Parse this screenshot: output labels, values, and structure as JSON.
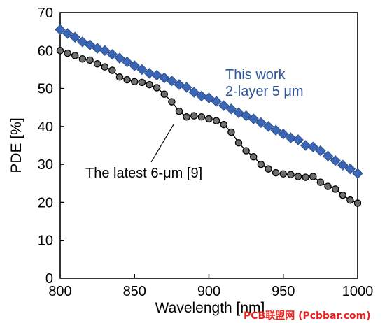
{
  "chart_data": {
    "type": "line",
    "xlabel": "Wavelength [nm]",
    "ylabel": "PDE [%]",
    "xlim": [
      800,
      1000
    ],
    "ylim": [
      0,
      70
    ],
    "x_ticks": [
      "800",
      "850",
      "900",
      "950",
      "1000"
    ],
    "y_ticks": [
      "0",
      "10",
      "20",
      "30",
      "40",
      "50",
      "60",
      "70"
    ],
    "grid": false,
    "series": [
      {
        "name": "This work 2-layer 5 μm",
        "color": "#3a66b5",
        "marker": "diamond",
        "x": [
          800,
          805,
          810,
          815,
          820,
          825,
          830,
          835,
          840,
          845,
          850,
          855,
          860,
          865,
          870,
          875,
          880,
          885,
          890,
          895,
          900,
          905,
          910,
          915,
          920,
          925,
          930,
          935,
          940,
          945,
          950,
          955,
          960,
          965,
          970,
          975,
          980,
          985,
          990,
          995,
          1000
        ],
        "values": [
          65.5,
          64.5,
          63.5,
          62.3,
          61.5,
          60.6,
          60.0,
          59.0,
          58.0,
          57.0,
          56.0,
          55.0,
          54.0,
          53.5,
          52.8,
          52.0,
          51.0,
          50.3,
          49.0,
          48.0,
          47.5,
          46.6,
          45.5,
          44.6,
          43.6,
          42.8,
          42.0,
          41.0,
          40.0,
          39.0,
          38.0,
          37.0,
          36.5,
          35.0,
          34.6,
          33.6,
          32.2,
          31.0,
          29.8,
          28.8,
          27.6
        ]
      },
      {
        "name": "The latest 6-μm [9]",
        "color": "#6e6e6e",
        "marker": "circle",
        "x": [
          800,
          805,
          810,
          815,
          820,
          825,
          830,
          835,
          840,
          845,
          850,
          855,
          860,
          865,
          870,
          875,
          880,
          885,
          890,
          895,
          900,
          905,
          910,
          915,
          920,
          925,
          930,
          935,
          940,
          945,
          950,
          955,
          960,
          965,
          970,
          975,
          980,
          985,
          990,
          995,
          1000
        ],
        "values": [
          60.0,
          59.3,
          58.7,
          57.8,
          57.5,
          56.5,
          55.7,
          54.8,
          53.0,
          52.3,
          51.8,
          51.6,
          51.0,
          50.2,
          48.5,
          46.5,
          44.0,
          42.5,
          42.8,
          42.5,
          42.0,
          41.5,
          40.5,
          38.5,
          35.7,
          33.6,
          32.0,
          30.0,
          28.8,
          27.8,
          27.5,
          27.3,
          26.8,
          26.6,
          26.8,
          25.3,
          24.2,
          23.5,
          21.9,
          20.6,
          19.8
        ]
      }
    ],
    "annotations": {
      "this_work_line1": "This work",
      "this_work_line2": "2-layer 5 μm",
      "latest": "The latest 6-μm [9]"
    }
  },
  "watermark": "PCB联盟网 (Pcbbar.com)"
}
